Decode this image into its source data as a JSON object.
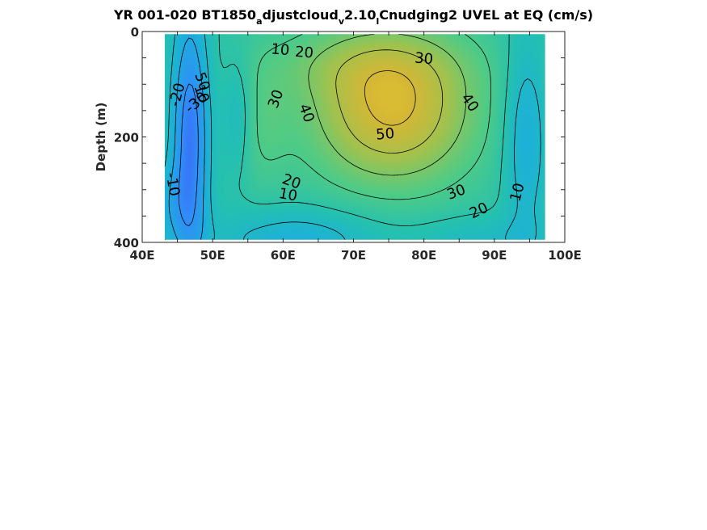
{
  "chart_data": {
    "type": "heatmap",
    "subtype": "filled contour section with labelled contour lines",
    "title": {
      "part1": "YR 001-020 BT1850",
      "sub1": "a",
      "part2": "djustcloud",
      "sub2": "v",
      "part3": "2.10",
      "sub3": "l",
      "part4": "Cnudging2 UVEL at EQ (cm/s)"
    },
    "xlabel": "",
    "ylabel": "Depth (m)",
    "x_ticks": [
      "40E",
      "50E",
      "60E",
      "70E",
      "80E",
      "90E",
      "100E"
    ],
    "x_tick_values": [
      40,
      50,
      60,
      70,
      80,
      90,
      100
    ],
    "y_ticks": [
      "0",
      "200",
      "400"
    ],
    "y_tick_values": [
      0,
      200,
      400
    ],
    "xlim": [
      40,
      100
    ],
    "ylim": [
      0,
      400
    ],
    "y_reversed": true,
    "data_extent": {
      "lon": [
        43.2,
        97.2
      ],
      "depth": [
        5,
        395
      ]
    },
    "colormap": "parula",
    "color_range": [
      -50,
      80
    ],
    "grid": false,
    "legend": "none",
    "contour_levels": [
      -30,
      -20,
      -10,
      0,
      10,
      20,
      30,
      40,
      50
    ],
    "contour_labels": [
      {
        "text": "10",
        "lon": 59.6,
        "depth": 35,
        "angle": 5
      },
      {
        "text": "20",
        "lon": 63.0,
        "depth": 40,
        "angle": 5
      },
      {
        "text": "30",
        "lon": 80.0,
        "depth": 52,
        "angle": 5
      },
      {
        "text": "50",
        "lon": 48.5,
        "depth": 95,
        "angle": 70
      },
      {
        "text": "-20",
        "lon": 45.0,
        "depth": 120,
        "angle": -75
      },
      {
        "text": "-30",
        "lon": 47.7,
        "depth": 135,
        "angle": -40
      },
      {
        "text": "10",
        "lon": 48.4,
        "depth": 118,
        "angle": 70
      },
      {
        "text": "30",
        "lon": 59.0,
        "depth": 128,
        "angle": -70
      },
      {
        "text": "40",
        "lon": 63.3,
        "depth": 155,
        "angle": 70
      },
      {
        "text": "40",
        "lon": 86.5,
        "depth": 135,
        "angle": 55
      },
      {
        "text": "50",
        "lon": 74.5,
        "depth": 195,
        "angle": -5
      },
      {
        "text": "-10",
        "lon": 44.3,
        "depth": 290,
        "angle": 80
      },
      {
        "text": "20",
        "lon": 61.2,
        "depth": 285,
        "angle": 20
      },
      {
        "text": "10",
        "lon": 60.7,
        "depth": 310,
        "angle": 10
      },
      {
        "text": "30",
        "lon": 84.6,
        "depth": 305,
        "angle": -20
      },
      {
        "text": "20",
        "lon": 87.8,
        "depth": 340,
        "angle": -25
      },
      {
        "text": "10",
        "lon": 93.3,
        "depth": 305,
        "angle": -75
      }
    ]
  },
  "colors": {
    "background": "#ffffff",
    "axis": "#262626",
    "contour_line": "#000000",
    "colormap_stops": [
      "#3e26a8",
      "#4353f6",
      "#2f8ff7",
      "#1cb0da",
      "#24c0b0",
      "#51cb85",
      "#9fc24f",
      "#d5b735",
      "#f2d52b",
      "#f9fb0e"
    ]
  }
}
